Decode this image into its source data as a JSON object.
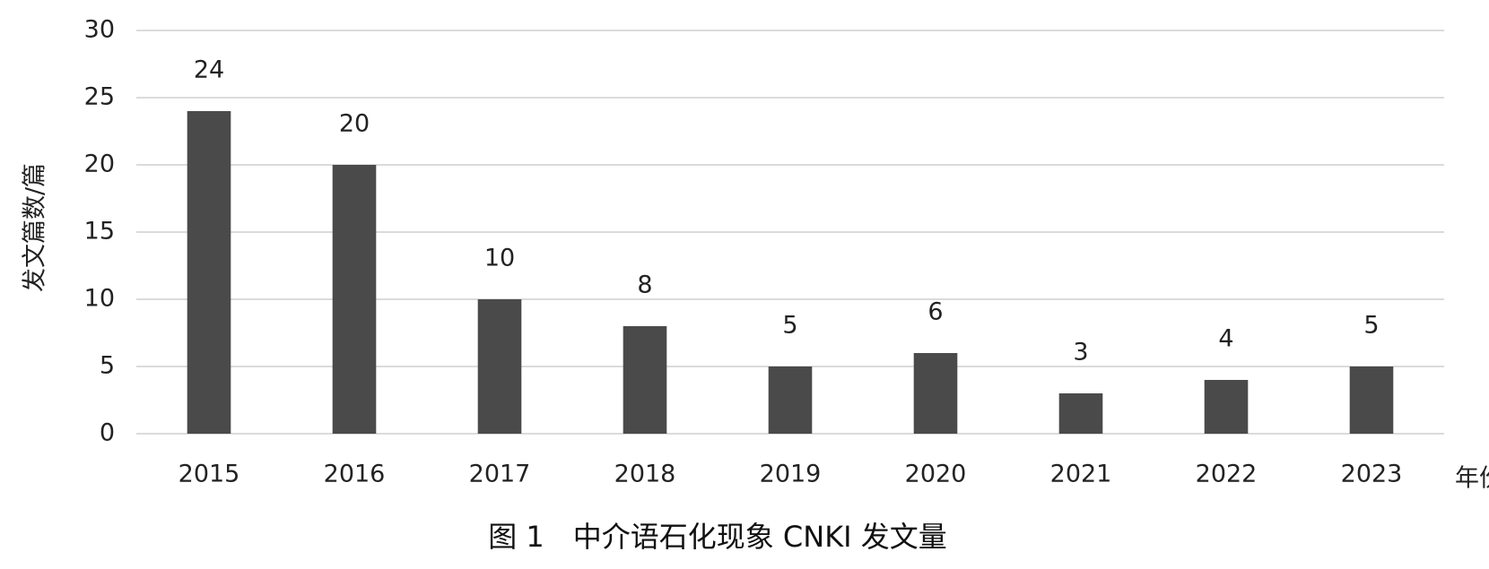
{
  "chart_data": {
    "type": "bar",
    "title": "图 1　中介语石化现象 CNKI 发文量",
    "x_label": "年份",
    "y_label": "发文篇数/篇",
    "categories": [
      "2015",
      "2016",
      "2017",
      "2018",
      "2019",
      "2020",
      "2021",
      "2022",
      "2023"
    ],
    "values": [
      24,
      20,
      10,
      8,
      5,
      6,
      3,
      4,
      5
    ],
    "color": "#4a4a4a",
    "ylim": [
      0,
      30
    ],
    "yticks": [
      0,
      5,
      10,
      15,
      20,
      25,
      30
    ],
    "grid": true
  }
}
